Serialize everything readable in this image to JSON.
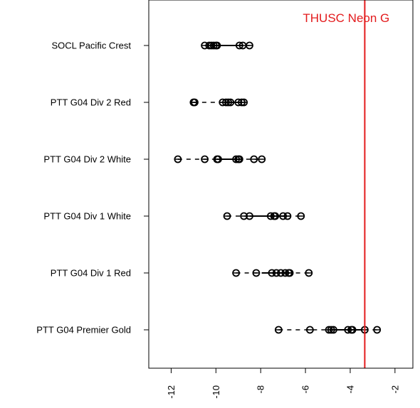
{
  "chart_data": {
    "type": "boxplot",
    "title": "",
    "xlabel": "",
    "ylabel": "",
    "xlim": [
      -13.0,
      -1.2
    ],
    "x_ticks": [
      -12,
      -10,
      -8,
      -6,
      -4,
      -2
    ],
    "x_tick_labels": [
      "-12",
      "-10",
      "-8",
      "-6",
      "-4",
      "-2"
    ],
    "grid": false,
    "categories": [
      "SOCL Pacific Crest",
      "PTT G04 Div 2 Red",
      "PTT G04 Div 2 White",
      "PTT G04 Div 1 White",
      "PTT G04 Div 1 Red",
      "PTT G04 Premier Gold"
    ],
    "series": [
      {
        "category": "SOCL Pacific Crest",
        "values": [
          -10.5,
          -10.3,
          -10.2,
          -10.1,
          -10.0,
          -9.95,
          -8.95,
          -8.8,
          -8.5
        ],
        "box": [
          -10.2,
          -8.85
        ],
        "whiskers": [
          -10.5,
          -8.5
        ]
      },
      {
        "category": "PTT G04 Div 2 Red",
        "values": [
          -11.0,
          -10.95,
          -9.7,
          -9.55,
          -9.45,
          -9.35,
          -9.0,
          -8.85,
          -8.75
        ],
        "box": [
          -9.55,
          -8.85
        ],
        "whiskers": [
          -11.0,
          -8.75
        ]
      },
      {
        "category": "PTT G04 Div 2 White",
        "values": [
          -11.7,
          -10.5,
          -9.95,
          -9.9,
          -9.1,
          -9.0,
          -8.95,
          -8.3,
          -7.95
        ],
        "box": [
          -9.95,
          -9.0
        ],
        "whiskers": [
          -11.7,
          -7.95
        ]
      },
      {
        "category": "PTT G04 Div 1 White",
        "values": [
          -9.5,
          -8.75,
          -8.5,
          -7.55,
          -7.4,
          -7.35,
          -7.0,
          -6.8,
          -6.2
        ],
        "box": [
          -8.5,
          -6.9
        ],
        "whiskers": [
          -9.5,
          -6.2
        ]
      },
      {
        "category": "PTT G04 Div 1 Red",
        "values": [
          -9.1,
          -8.2,
          -7.5,
          -7.3,
          -7.1,
          -6.9,
          -6.75,
          -6.7,
          -5.85
        ],
        "box": [
          -7.95,
          -6.7
        ],
        "whiskers": [
          -9.1,
          -5.85
        ]
      },
      {
        "category": "PTT G04 Premier Gold",
        "values": [
          -7.2,
          -5.8,
          -4.95,
          -4.85,
          -4.75,
          -4.1,
          -3.95,
          -3.9,
          -3.35,
          -2.8
        ],
        "box": [
          -4.9,
          -3.45
        ],
        "whiskers": [
          -7.2,
          -2.8
        ]
      }
    ],
    "reference_line": {
      "label": "THUSC Neon G",
      "x": -3.35,
      "color": "#e31a1c"
    },
    "colors": {
      "points": "#000000",
      "axis": "#000000",
      "reference": "#e31a1c"
    }
  }
}
